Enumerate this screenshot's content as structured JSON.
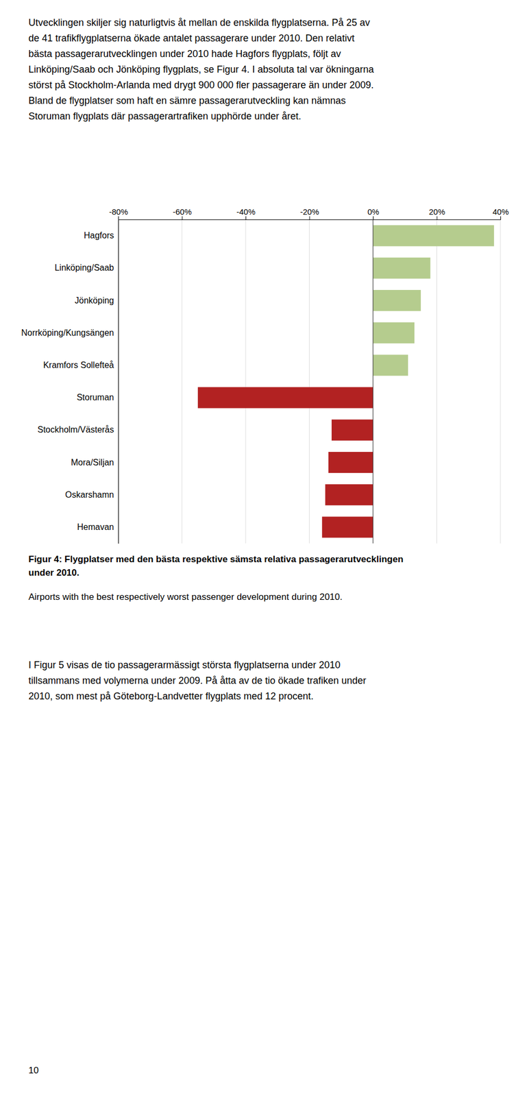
{
  "chart_data": {
    "type": "bar",
    "orientation": "horizontal",
    "title": "Figur 4: Flygplatser med den bästa respektive sämsta relativa passagerarutvecklingen\nunder 2010.",
    "subtitle": "Airports with the best respectively worst passenger development during 2010.",
    "categories": [
      "Hagfors",
      "Linköping/Saab",
      "Jönköping",
      "Norrköping/Kungsängen",
      "Kramfors Sollefteå",
      "Storuman",
      "Stockholm/Västerås",
      "Mora/Siljan",
      "Oskarshamn",
      "Hemavan"
    ],
    "values": [
      38,
      18,
      15,
      13,
      11,
      -55,
      -13,
      -14,
      -15,
      -16
    ],
    "colors": [
      "#b5cc8e",
      "#b5cc8e",
      "#b5cc8e",
      "#b5cc8e",
      "#b5cc8e",
      "#b22222",
      "#b22222",
      "#b22222",
      "#b22222",
      "#b22222"
    ],
    "xlim": [
      -80,
      40
    ],
    "xticks": [
      {
        "value": -80,
        "label": "-80%"
      },
      {
        "value": -60,
        "label": "-60%"
      },
      {
        "value": -40,
        "label": "-40%"
      },
      {
        "value": -20,
        "label": "-20%"
      },
      {
        "value": 0,
        "label": "0%"
      },
      {
        "value": 20,
        "label": "20%"
      },
      {
        "value": 40,
        "label": "40%"
      }
    ],
    "grid": true
  },
  "text_before": [
    "Utvecklingen skiljer sig naturligtvis åt mellan de enskilda flygplatserna. På 25 av",
    "de 41 trafikflygplatserna ökade antalet passagerare under 2010. Den relativt",
    "bästa passagerarutvecklingen under 2010 hade Hagfors flygplats, följt av",
    "Linköping/Saab och Jönköping flygplats, se Figur 4. I absoluta tal var ökningarna",
    "störst på Stockholm-Arlanda med drygt 900 000 fler passagerare än under 2009.",
    "Bland de flygplatser som haft en sämre passagerarutveckling kan nämnas",
    "Storuman flygplats där passagerartrafiken upphörde under året."
  ],
  "text_after": [
    "I Figur 5 visas de tio passagerarmässigt största flygplatserna under 2010",
    "tillsammans med volymerna under 2009. På åtta av de tio ökade trafiken under",
    "2010, som mest på Göteborg-Landvetter flygplats med 12 procent."
  ],
  "page_number": "10"
}
